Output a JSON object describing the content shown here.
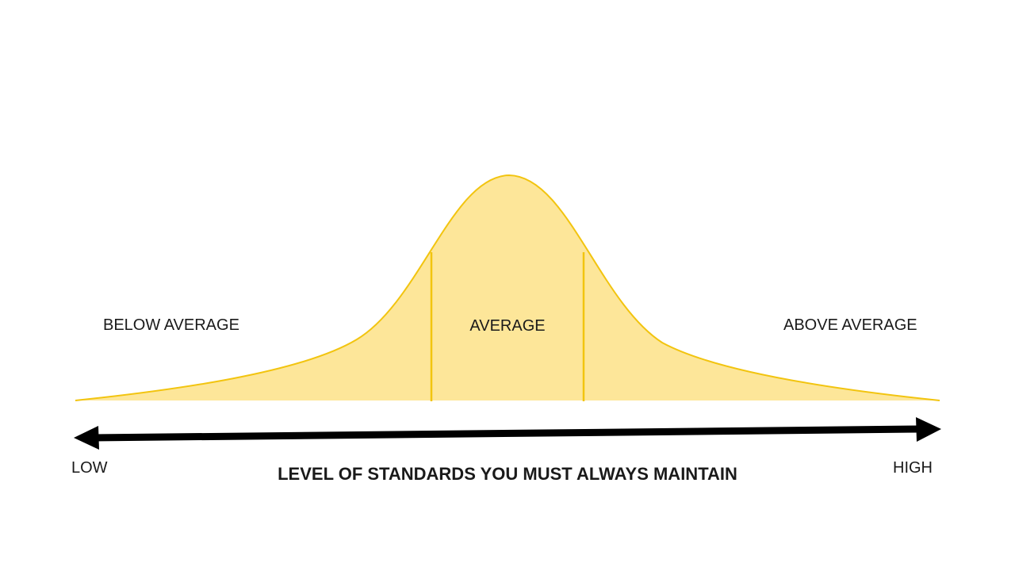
{
  "diagram": {
    "segments": {
      "left": "BELOW AVERAGE",
      "middle": "AVERAGE",
      "right": "ABOVE AVERAGE"
    },
    "axis": {
      "low": "LOW",
      "high": "HIGH",
      "title": "LEVEL OF STANDARDS YOU MUST ALWAYS MAINTAIN"
    },
    "colors": {
      "curve_fill": "#FDE699",
      "curve_stroke": "#F2C40F",
      "arrow": "#000000",
      "text": "#1a1a1a"
    }
  }
}
